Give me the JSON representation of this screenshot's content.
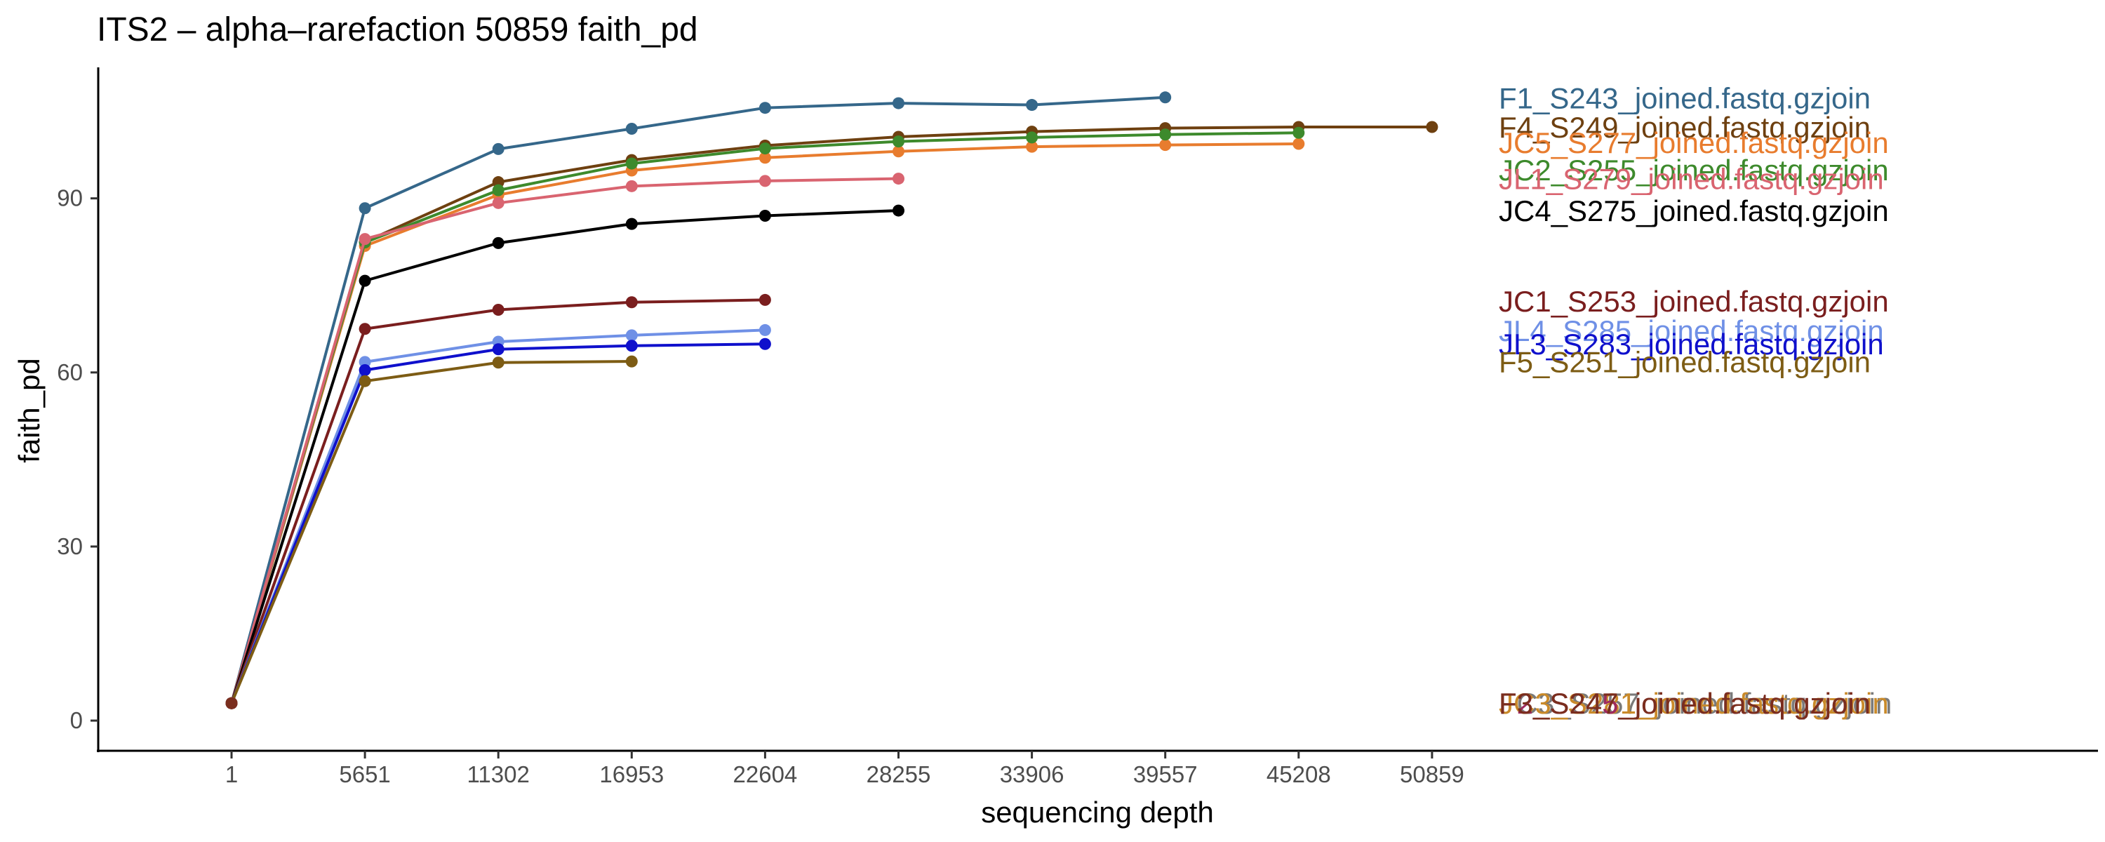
{
  "chart_data": {
    "type": "line",
    "title": "ITS2 – alpha–rarefaction 50859 faith_pd",
    "xlabel": "sequencing depth",
    "ylabel": "faith_pd",
    "x_categories": [
      "1",
      "5651",
      "11302",
      "16953",
      "22604",
      "28255",
      "33906",
      "39557",
      "45208",
      "50859"
    ],
    "y_ticks": [
      0,
      30,
      60,
      90
    ],
    "ylim": [
      -5,
      112
    ],
    "grid": false,
    "legend": "direct labels at right end",
    "series": [
      {
        "name": "F1_S243_joined.fastq.gzjoin",
        "color": "#35678a",
        "values": [
          3,
          88.3,
          98.5,
          102,
          105.6,
          106.4,
          106.1,
          107.4,
          null,
          null
        ],
        "label_y": 107.2
      },
      {
        "name": "F4_S249_joined.fastq.gzjoin",
        "color": "#6e4010",
        "values": [
          3,
          82.5,
          92.8,
          96.6,
          99.1,
          100.6,
          101.5,
          102.1,
          102.3,
          102.3
        ],
        "label_y": 102.2
      },
      {
        "name": "JC5_S277_joined.fastq.gzjoin",
        "color": "#e87c2e",
        "values": [
          3,
          81.8,
          90.6,
          94.8,
          97,
          98.1,
          98.9,
          99.2,
          99.4,
          null
        ],
        "label_y": 99.5
      },
      {
        "name": "JC2_S255_joined.fastq.gzjoin",
        "color": "#3d8a2c",
        "values": [
          3,
          82.4,
          91.4,
          96,
          98.6,
          99.8,
          100.5,
          101,
          101.3,
          null
        ],
        "label_y": 94.8
      },
      {
        "name": "JL1_S279_joined.fastq.gzjoin",
        "color": "#d96470",
        "values": [
          3,
          83,
          89.2,
          92.1,
          93,
          93.4,
          null,
          null,
          null,
          null
        ],
        "label_y": 93.3
      },
      {
        "name": "JC4_S275_joined.fastq.gzjoin",
        "color": "#000000",
        "values": [
          3,
          75.8,
          82.3,
          85.6,
          87,
          87.9,
          null,
          null,
          null,
          null
        ],
        "label_y": 87.8
      },
      {
        "name": "JC1_S253_joined.fastq.gzjoin",
        "color": "#7a1e1e",
        "values": [
          3,
          67.5,
          70.8,
          72.1,
          72.5,
          null,
          null,
          null,
          null,
          null
        ],
        "label_y": 72.2
      },
      {
        "name": "JL4_S285_joined.fastq.gzjoin",
        "color": "#6f90e6",
        "values": [
          3,
          61.8,
          65.3,
          66.4,
          67.3,
          null,
          null,
          null,
          null,
          null
        ],
        "label_y": 67.1
      },
      {
        "name": "JL3_S283_joined.fastq.gzjoin",
        "color": "#0f10cc",
        "values": [
          3,
          60.4,
          64,
          64.6,
          64.9,
          null,
          null,
          null,
          null,
          null
        ],
        "label_y": 64.8
      },
      {
        "name": "F5_S251_joined.fastq.gzjoin",
        "color": "#7d5c14",
        "values": [
          3,
          58.5,
          61.7,
          61.9,
          null,
          null,
          null,
          null,
          null,
          null
        ],
        "label_y": 61.7
      },
      {
        "name": "FC3_S257_joined.fastq.gzjoin",
        "color": "#7a7a7a",
        "values": [
          3,
          null,
          null,
          null,
          null,
          null,
          null,
          null,
          null,
          null
        ],
        "label_y": 2.9
      },
      {
        "name": "JC3_S281_joined.fastq.gzjoin",
        "color": "#c98a2a",
        "values": [
          3,
          null,
          null,
          null,
          null,
          null,
          null,
          null,
          null,
          null
        ],
        "label_y": 2.9
      },
      {
        "name": "F2_S245_joined.fastq.gzjoin",
        "color": "#9e2a5e",
        "values": [
          3,
          null,
          null,
          null,
          null,
          null,
          null,
          null,
          null,
          null
        ],
        "label_y": 2.9
      },
      {
        "name": "F3_S247_joined.fastq.gzjoin",
        "color": "#7a2e1e",
        "values": [
          3,
          null,
          null,
          null,
          null,
          null,
          null,
          null,
          null,
          null
        ],
        "label_y": 2.9
      }
    ]
  }
}
